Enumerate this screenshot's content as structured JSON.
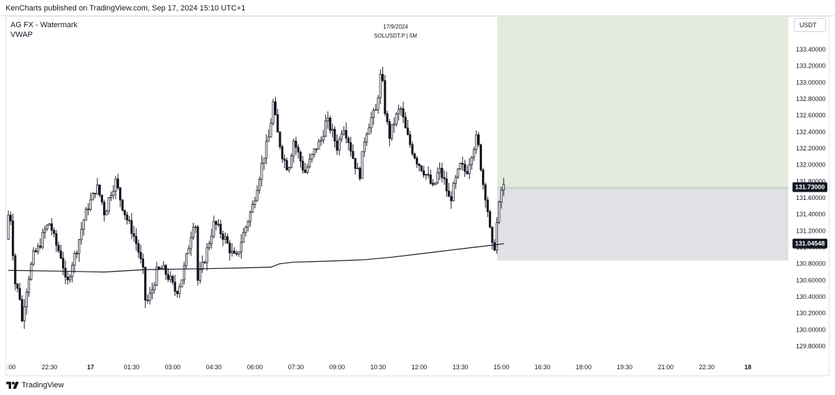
{
  "header": {
    "published_text": "KenCharts published on TradingView.com, Sep 17, 2024 15:10 UTC+1"
  },
  "indicators": {
    "line1": "AG FX - Watermark",
    "line2": "VWAP"
  },
  "watermark": {
    "date": "17/9/2024",
    "symbol": "SOLUSDT.P | 5M"
  },
  "price_scale": {
    "unit": "USDT"
  },
  "footer": {
    "brand": "TradingView",
    "logo_icon": "tradingview-logo-icon"
  },
  "colors": {
    "candle": "#131722",
    "vwap": "#131722",
    "target_zone": "#e3ebdf",
    "stop_zone": "#e1e1e5",
    "entry_line": "#cfd9cb",
    "price_tag": "#131722"
  },
  "chart_data": {
    "type": "candlestick",
    "title": "",
    "symbol": "SOLUSDT.P",
    "interval": "5M",
    "xlabel": "",
    "ylabel": "",
    "ylim": [
      129.7,
      133.8
    ],
    "y_ticks": [
      "133.40000",
      "133.20000",
      "133.00000",
      "132.80000",
      "132.60000",
      "132.40000",
      "132.20000",
      "132.00000",
      "131.80000",
      "131.60000",
      "131.40000",
      "131.20000",
      "131.00000",
      "130.80000",
      "130.60000",
      "130.40000",
      "130.20000",
      "130.00000",
      "129.80000"
    ],
    "y_tick_values": [
      133.4,
      133.2,
      133.0,
      132.8,
      132.6,
      132.4,
      132.2,
      132.0,
      131.8,
      131.6,
      131.4,
      131.2,
      131.0,
      130.8,
      130.6,
      130.4,
      130.2,
      130.0,
      129.8
    ],
    "x_ticks": [
      ":00",
      "22:30",
      "17",
      "01:30",
      "03:00",
      "04:30",
      "06:00",
      "07:30",
      "09:00",
      "10:30",
      "12:00",
      "13:30",
      "15:00",
      "16:30",
      "18:00",
      "19:30",
      "21:00",
      "22:30",
      "18"
    ],
    "x_tick_hours": [
      -3,
      -1.5,
      0,
      1.5,
      3,
      4.5,
      6,
      7.5,
      9,
      10.5,
      12,
      13.5,
      15,
      16.5,
      18,
      19.5,
      21,
      22.5,
      24
    ],
    "current_price": "131.73000",
    "current_price_value": 131.73,
    "vwap_price": "131.04548",
    "vwap_value": 131.04548,
    "position": {
      "entry": 131.71,
      "target": 133.84,
      "stop": 130.84,
      "start_hour": 14.8,
      "end_hour": 24.45
    },
    "price_path": [
      [
        -3.0,
        131.1
      ],
      [
        -2.9,
        131.45
      ],
      [
        -2.8,
        131.3
      ],
      [
        -2.7,
        130.6
      ],
      [
        -2.6,
        130.5
      ],
      [
        -2.5,
        130.4
      ],
      [
        -2.45,
        130.0
      ],
      [
        -2.35,
        130.3
      ],
      [
        -2.2,
        130.6
      ],
      [
        -2.0,
        130.9
      ],
      [
        -1.8,
        131.0
      ],
      [
        -1.6,
        131.2
      ],
      [
        -1.4,
        131.3
      ],
      [
        -1.2,
        131.05
      ],
      [
        -1.0,
        130.9
      ],
      [
        -0.9,
        130.75
      ],
      [
        -0.8,
        130.5
      ],
      [
        -0.6,
        130.8
      ],
      [
        -0.4,
        131.0
      ],
      [
        -0.2,
        131.3
      ],
      [
        0.0,
        131.5
      ],
      [
        0.15,
        131.6
      ],
      [
        0.3,
        131.75
      ],
      [
        0.5,
        131.55
      ],
      [
        0.6,
        131.4
      ],
      [
        0.8,
        131.65
      ],
      [
        1.0,
        131.8
      ],
      [
        1.2,
        131.55
      ],
      [
        1.4,
        131.35
      ],
      [
        1.6,
        131.2
      ],
      [
        1.8,
        131.0
      ],
      [
        2.0,
        130.7
      ],
      [
        2.1,
        130.3
      ],
      [
        2.3,
        130.45
      ],
      [
        2.5,
        130.7
      ],
      [
        2.7,
        130.75
      ],
      [
        3.0,
        130.6
      ],
      [
        3.2,
        130.45
      ],
      [
        3.4,
        130.6
      ],
      [
        3.6,
        130.9
      ],
      [
        3.8,
        131.25
      ],
      [
        3.9,
        131.4
      ],
      [
        4.0,
        130.6
      ],
      [
        4.2,
        130.8
      ],
      [
        4.4,
        131.05
      ],
      [
        4.6,
        131.3
      ],
      [
        4.8,
        131.2
      ],
      [
        5.0,
        131.1
      ],
      [
        5.2,
        130.95
      ],
      [
        5.4,
        130.85
      ],
      [
        5.6,
        131.1
      ],
      [
        5.8,
        131.3
      ],
      [
        6.0,
        131.5
      ],
      [
        6.2,
        131.8
      ],
      [
        6.4,
        132.1
      ],
      [
        6.6,
        132.35
      ],
      [
        6.75,
        132.75
      ],
      [
        6.9,
        132.4
      ],
      [
        7.1,
        132.1
      ],
      [
        7.3,
        131.95
      ],
      [
        7.5,
        132.3
      ],
      [
        7.7,
        132.1
      ],
      [
        7.9,
        131.9
      ],
      [
        8.1,
        132.05
      ],
      [
        8.3,
        132.2
      ],
      [
        8.5,
        132.3
      ],
      [
        8.7,
        132.55
      ],
      [
        8.9,
        132.4
      ],
      [
        9.1,
        132.2
      ],
      [
        9.3,
        132.5
      ],
      [
        9.5,
        132.3
      ],
      [
        9.7,
        132.05
      ],
      [
        9.9,
        131.85
      ],
      [
        10.1,
        132.35
      ],
      [
        10.3,
        132.55
      ],
      [
        10.5,
        132.65
      ],
      [
        10.7,
        133.15
      ],
      [
        10.85,
        132.6
      ],
      [
        11.0,
        132.35
      ],
      [
        11.2,
        132.55
      ],
      [
        11.4,
        132.7
      ],
      [
        11.6,
        132.4
      ],
      [
        11.8,
        132.2
      ],
      [
        12.0,
        132.05
      ],
      [
        12.2,
        131.95
      ],
      [
        12.4,
        131.85
      ],
      [
        12.6,
        131.7
      ],
      [
        12.8,
        131.95
      ],
      [
        13.0,
        131.8
      ],
      [
        13.2,
        131.55
      ],
      [
        13.4,
        131.8
      ],
      [
        13.6,
        132.0
      ],
      [
        13.8,
        131.9
      ],
      [
        14.0,
        132.15
      ],
      [
        14.2,
        132.35
      ],
      [
        14.4,
        131.8
      ],
      [
        14.55,
        131.55
      ],
      [
        14.7,
        131.1
      ],
      [
        14.8,
        130.9
      ],
      [
        14.9,
        131.25
      ],
      [
        15.0,
        131.5
      ],
      [
        15.1,
        131.73
      ]
    ],
    "vwap_path": [
      [
        -3.0,
        130.72
      ],
      [
        -1.0,
        130.71
      ],
      [
        0.5,
        130.7
      ],
      [
        2.0,
        130.73
      ],
      [
        4.0,
        130.74
      ],
      [
        5.5,
        130.75
      ],
      [
        6.6,
        130.76
      ],
      [
        6.9,
        130.8
      ],
      [
        7.4,
        130.82
      ],
      [
        8.5,
        130.83
      ],
      [
        10.0,
        130.85
      ],
      [
        11.0,
        130.88
      ],
      [
        12.0,
        130.92
      ],
      [
        13.0,
        130.96
      ],
      [
        14.0,
        131.0
      ],
      [
        14.8,
        131.03
      ],
      [
        15.1,
        131.045
      ]
    ]
  }
}
